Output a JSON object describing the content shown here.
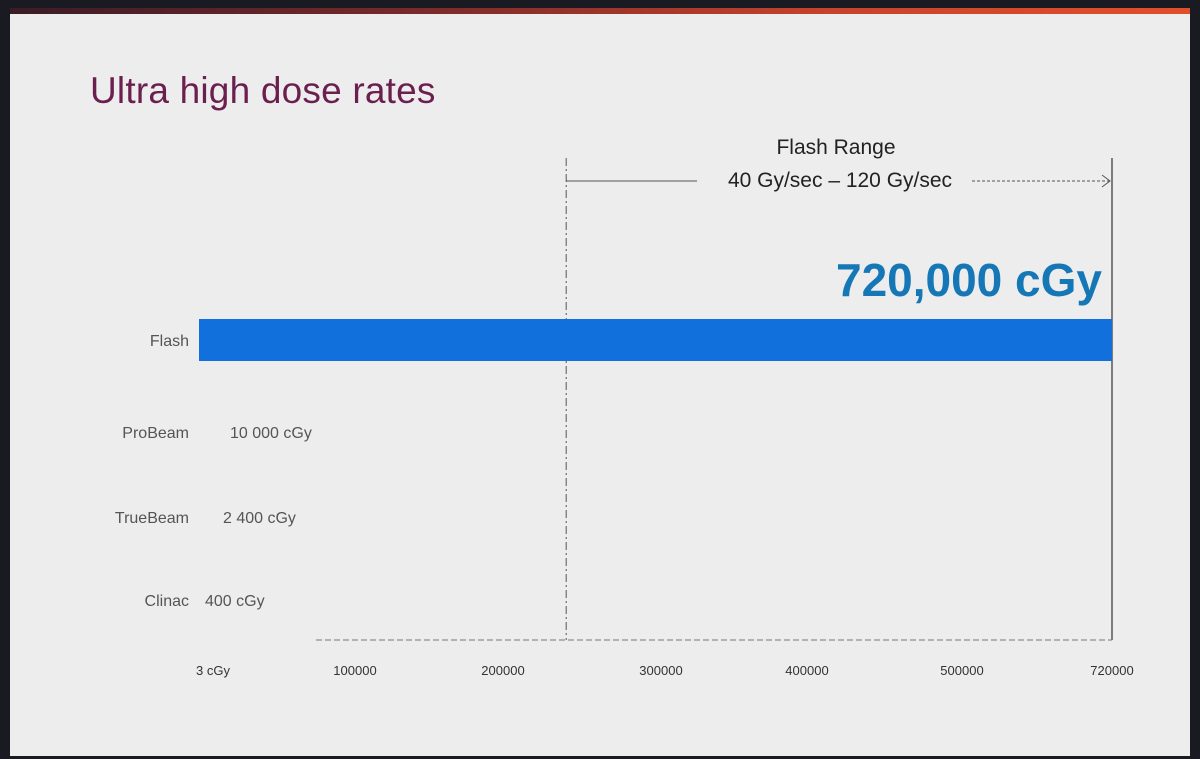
{
  "slide": {
    "title": "Ultra high dose rates"
  },
  "colors": {
    "bar": "#1170dc",
    "big_value": "#1677b6",
    "title": "#6b1f4f",
    "accent_bar": "#d6462b"
  },
  "chart_data": {
    "type": "bar",
    "orientation": "horizontal",
    "categories": [
      "Flash",
      "ProBeam",
      "TrueBeam",
      "Clinac"
    ],
    "values": [
      720000,
      10000,
      2400,
      400
    ],
    "value_labels": [
      "720,000 cGy",
      "10 000 cGy",
      "2 400 cGy",
      "400 cGy"
    ],
    "xticks": [
      {
        "value": 3,
        "label": "3 cGy"
      },
      {
        "value": 100000,
        "label": "100000"
      },
      {
        "value": 200000,
        "label": "200000"
      },
      {
        "value": 300000,
        "label": "300000"
      },
      {
        "value": 400000,
        "label": "400000"
      },
      {
        "value": 500000,
        "label": "500000"
      },
      {
        "value": 720000,
        "label": "720000"
      }
    ],
    "flash_range": {
      "title": "Flash Range",
      "subtitle": "40 Gy/sec – 120 Gy/sec",
      "start": 240000,
      "end": 720000
    },
    "grid": false,
    "legend": "none"
  }
}
